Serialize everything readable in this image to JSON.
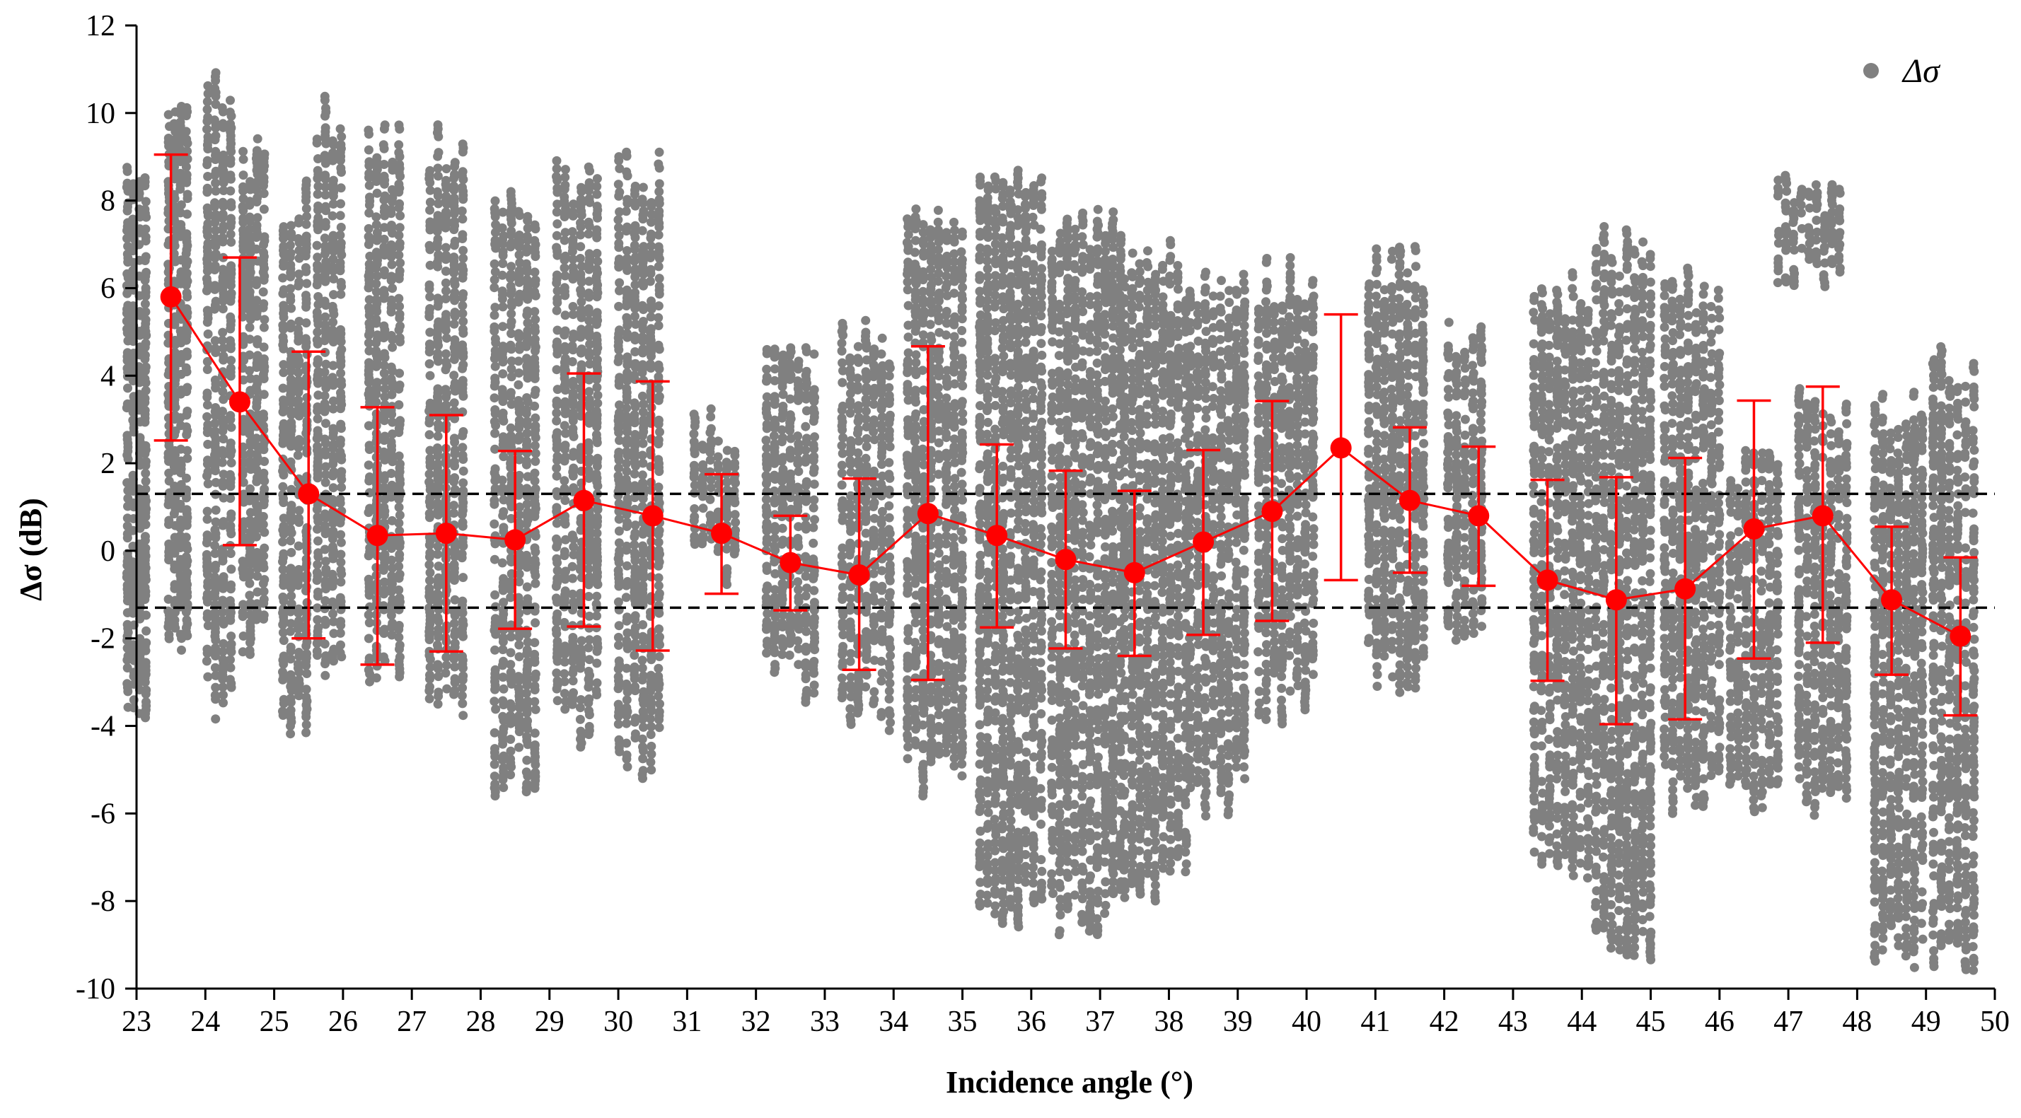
{
  "chart_data": {
    "type": "scatter",
    "title": "",
    "xlabel": "Incidence angle (°)",
    "ylabel": "Δσ (dB)",
    "xlim": [
      23,
      50
    ],
    "ylim": [
      -10,
      12
    ],
    "x_ticks": [
      "23",
      "24",
      "25",
      "26",
      "27",
      "28",
      "29",
      "30",
      "31",
      "32",
      "33",
      "34",
      "35",
      "36",
      "37",
      "38",
      "39",
      "40",
      "41",
      "42",
      "43",
      "44",
      "45",
      "46",
      "47",
      "48",
      "49",
      "50"
    ],
    "y_ticks": [
      "12",
      "10",
      "8",
      "6",
      "4",
      "2",
      "0",
      "-2",
      "-4",
      "-6",
      "-8",
      "-10"
    ],
    "legend": {
      "label": "Δσ",
      "position": "top-right"
    },
    "grid": false,
    "colors": {
      "scatter": "#808080",
      "mean": "#ff0000",
      "threshold": "#000000"
    },
    "threshold_lines": [
      1.3,
      -1.3
    ],
    "scatter_series": {
      "name": "Δσ",
      "point_clouds": [
        {
          "x": 23.0,
          "width": 0.35,
          "ymin": -4.3,
          "ymax": 9.6
        },
        {
          "x": 23.6,
          "width": 0.35,
          "ymin": -2.5,
          "ymax": 10.7
        },
        {
          "x": 24.2,
          "width": 0.45,
          "ymin": -4.0,
          "ymax": 11.0
        },
        {
          "x": 24.7,
          "width": 0.4,
          "ymin": -2.8,
          "ymax": 9.8
        },
        {
          "x": 25.3,
          "width": 0.45,
          "ymin": -4.5,
          "ymax": 8.6
        },
        {
          "x": 25.8,
          "width": 0.45,
          "ymin": -3.4,
          "ymax": 10.5
        },
        {
          "x": 26.6,
          "width": 0.55,
          "ymin": -3.3,
          "ymax": 10.1
        },
        {
          "x": 27.5,
          "width": 0.6,
          "ymin": -4.2,
          "ymax": 9.8
        },
        {
          "x": 28.5,
          "width": 0.7,
          "ymin": -5.7,
          "ymax": 8.5
        },
        {
          "x": 29.4,
          "width": 0.7,
          "ymin": -4.5,
          "ymax": 9.0
        },
        {
          "x": 30.3,
          "width": 0.7,
          "ymin": -5.2,
          "ymax": 9.3
        },
        {
          "x": 31.4,
          "width": 0.7,
          "ymin": -1.0,
          "ymax": 3.5
        },
        {
          "x": 32.5,
          "width": 0.8,
          "ymin": -3.5,
          "ymax": 5.2
        },
        {
          "x": 33.6,
          "width": 0.8,
          "ymin": -4.3,
          "ymax": 5.3
        },
        {
          "x": 34.6,
          "width": 0.9,
          "ymin": -5.8,
          "ymax": 8.2
        },
        {
          "x": 35.7,
          "width": 1.0,
          "ymin": -8.7,
          "ymax": 9.2
        },
        {
          "x": 36.8,
          "width": 1.1,
          "ymin": -9.0,
          "ymax": 8.2
        },
        {
          "x": 37.8,
          "width": 1.0,
          "ymin": -8.3,
          "ymax": 7.3
        },
        {
          "x": 38.7,
          "width": 0.9,
          "ymin": -6.3,
          "ymax": 6.5
        },
        {
          "x": 39.7,
          "width": 0.9,
          "ymin": -4.0,
          "ymax": 6.8
        },
        {
          "x": 41.3,
          "width": 0.9,
          "ymin": -3.3,
          "ymax": 7.2
        },
        {
          "x": 42.3,
          "width": 0.6,
          "ymin": -2.9,
          "ymax": 5.5
        },
        {
          "x": 43.7,
          "width": 0.9,
          "ymin": -7.6,
          "ymax": 6.5
        },
        {
          "x": 44.6,
          "width": 0.9,
          "ymin": -9.8,
          "ymax": 7.5
        },
        {
          "x": 45.6,
          "width": 0.9,
          "ymin": -6.0,
          "ymax": 6.7
        },
        {
          "x": 46.5,
          "width": 0.8,
          "ymin": -6.3,
          "ymax": 2.5
        },
        {
          "x": 47.3,
          "width": 1.0,
          "ymin": 5.7,
          "ymax": 8.7
        },
        {
          "x": 47.5,
          "width": 0.8,
          "ymin": -6.3,
          "ymax": 3.8
        },
        {
          "x": 48.6,
          "width": 0.8,
          "ymin": -9.8,
          "ymax": 3.8
        },
        {
          "x": 49.4,
          "width": 0.7,
          "ymin": -9.9,
          "ymax": 5.0
        }
      ]
    },
    "mean_series": {
      "x": [
        23.5,
        24.5,
        25.5,
        26.5,
        27.5,
        28.5,
        29.5,
        30.5,
        31.5,
        32.5,
        33.5,
        34.5,
        35.5,
        36.5,
        37.5,
        38.5,
        39.5,
        40.5,
        41.5,
        42.5,
        43.5,
        44.5,
        45.5,
        46.5,
        47.5,
        48.5,
        49.5
      ],
      "y": [
        5.8,
        3.4,
        1.3,
        0.35,
        0.4,
        0.25,
        1.15,
        0.8,
        0.4,
        -0.27,
        -0.55,
        0.85,
        0.35,
        -0.2,
        -0.5,
        0.2,
        0.9,
        2.35,
        1.15,
        0.8,
        -0.67,
        -1.12,
        -0.87,
        0.5,
        0.8,
        -1.12,
        -1.95
      ],
      "upper": [
        9.05,
        6.7,
        4.55,
        3.28,
        3.1,
        2.28,
        4.05,
        3.87,
        1.75,
        0.8,
        1.65,
        4.67,
        2.43,
        1.83,
        1.37,
        2.3,
        3.42,
        5.4,
        2.82,
        2.38,
        1.62,
        1.68,
        2.12,
        3.43,
        3.75,
        0.55,
        -0.15
      ],
      "lower": [
        2.52,
        0.13,
        -2.0,
        -2.6,
        -2.3,
        -1.78,
        -1.73,
        -2.28,
        -0.98,
        -1.36,
        -2.72,
        -2.95,
        -1.75,
        -2.23,
        -2.4,
        -1.92,
        -1.6,
        -0.67,
        -0.5,
        -0.8,
        -2.97,
        -3.96,
        -3.85,
        -2.46,
        -2.1,
        -2.83,
        -3.76
      ]
    }
  }
}
